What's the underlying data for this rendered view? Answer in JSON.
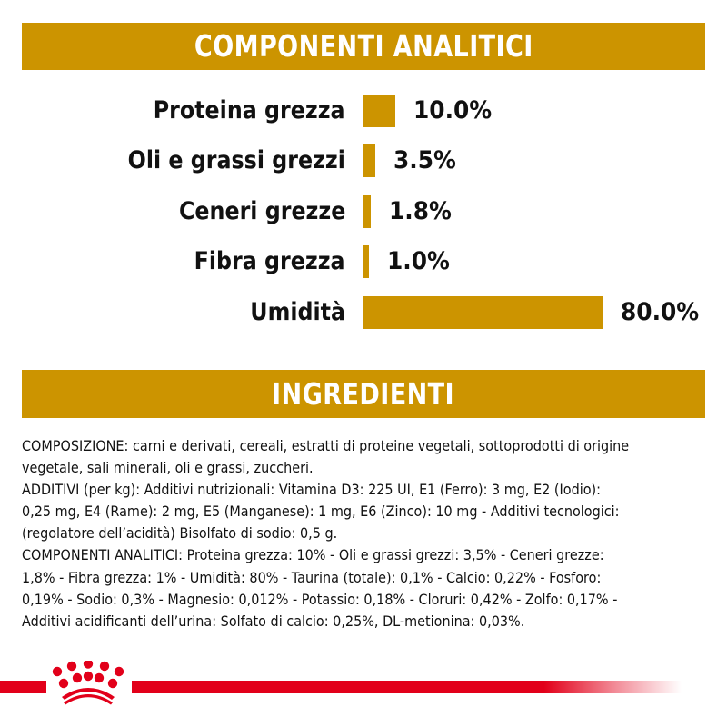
{
  "colors": {
    "accent_gold": "#CC9400",
    "brand_red": "#E2001A",
    "text": "#111111",
    "background": "#FFFFFF"
  },
  "analytic_section": {
    "title": "COMPONENTI ANALITICI"
  },
  "ingredients_section": {
    "title": "INGREDIENTI",
    "lines": [
      "COMPOSIZIONE: carni e derivati, cereali, estratti di proteine vegetali, sottoprodotti di origine",
      "vegetale, sali minerali, oli e grassi, zuccheri.",
      "ADDITIVI (per kg): Additivi nutrizionali: Vitamina D3: 225 UI, E1 (Ferro): 3 mg, E2 (Iodio):",
      "0,25 mg, E4 (Rame): 2 mg, E5 (Manganese): 1 mg, E6 (Zinco): 10 mg - Additivi tecnologici:",
      "(regolatore dell’acidità) Bisolfato di sodio: 0,5 g.",
      "COMPONENTI ANALITICI: Proteina grezza: 10% - Oli e grassi grezzi: 3,5% - Ceneri grezze:",
      "1,8% - Fibra grezza: 1% - Umidità: 80% - Taurina (totale): 0,1% - Calcio: 0,22% - Fosforo:",
      "0,19% - Sodio: 0,3% - Magnesio: 0,012% - Potassio: 0,18% - Cloruri: 0,42% - Zolfo: 0,17% -",
      "Additivi acidificanti dell’urina: Solfato di calcio: 0,25%, DL-metionina: 0,03%."
    ]
  },
  "footer": {
    "logo_icon": "royal-canin-crown-icon"
  },
  "chart_data": {
    "type": "bar",
    "orientation": "horizontal",
    "title": "COMPONENTI ANALITICI",
    "xlabel": "",
    "ylabel": "",
    "grid": false,
    "legend": null,
    "xlim": [
      0,
      80
    ],
    "categories": [
      "Proteina grezza",
      "Oli e grassi grezzi",
      "Ceneri grezze",
      "Fibra grezza",
      "Umidità"
    ],
    "values": [
      10.0,
      3.5,
      1.8,
      1.0,
      80.0
    ],
    "value_labels": [
      "10.0%",
      "3.5%",
      "1.8%",
      "1.0%",
      "80.0%"
    ],
    "unit": "%",
    "bar_color": "#CC9400"
  }
}
